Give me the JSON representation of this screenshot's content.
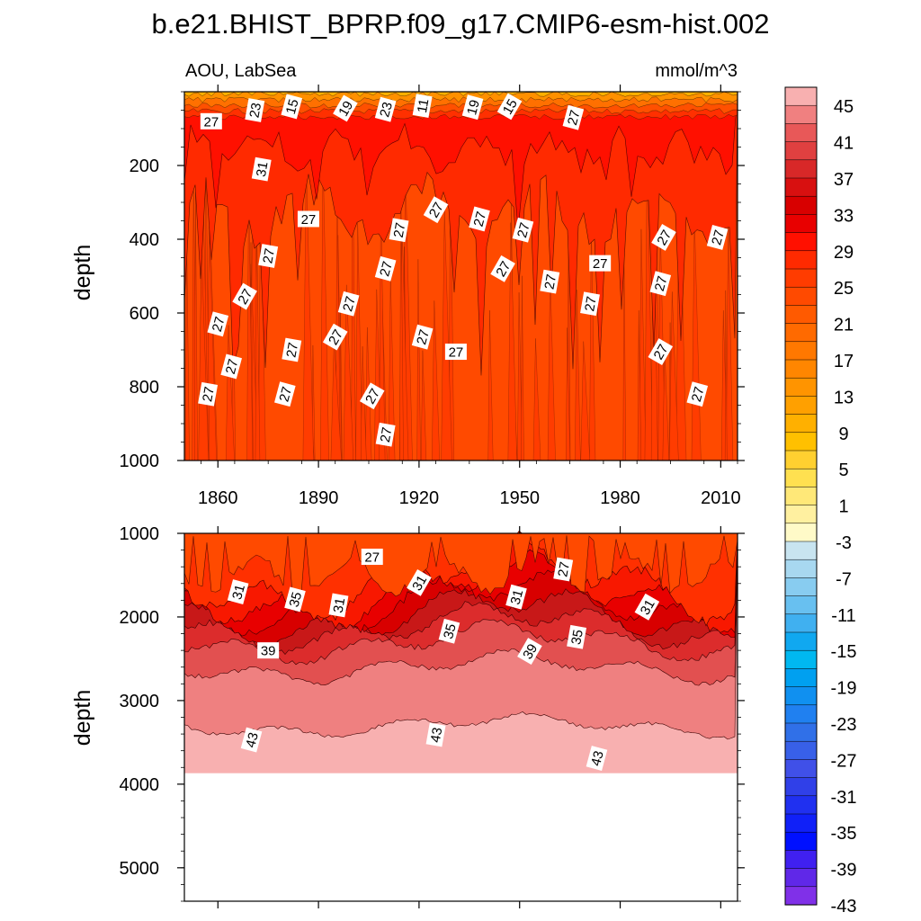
{
  "chart_data": [
    {
      "type": "contour",
      "panel": "upper",
      "title": "b.e21.BHIST_BPRP.f09_g17.CMIP6-esm-hist.002",
      "left_subtitle": "AOU, LabSea",
      "right_subtitle": "mmol/m^3",
      "xlabel": "",
      "ylabel": "depth",
      "xlim": [
        1850,
        2015
      ],
      "ylim": [
        0,
        1000
      ],
      "y_reversed": true,
      "x_ticks": [
        "1860",
        "1890",
        "1920",
        "1950",
        "1980",
        "2010"
      ],
      "x_tick_values": [
        1860,
        1890,
        1920,
        1950,
        1980,
        2010
      ],
      "y_ticks": [
        "200",
        "400",
        "600",
        "800",
        "1000"
      ],
      "y_tick_values": [
        200,
        400,
        600,
        800,
        1000
      ],
      "contour_labels": [
        {
          "text": "27",
          "x": 1858,
          "y": 80
        },
        {
          "text": "23",
          "x": 1871,
          "y": 50
        },
        {
          "text": "15",
          "x": 1882,
          "y": 40
        },
        {
          "text": "19",
          "x": 1898,
          "y": 45
        },
        {
          "text": "23",
          "x": 1910,
          "y": 48
        },
        {
          "text": "11",
          "x": 1921,
          "y": 38
        },
        {
          "text": "19",
          "x": 1936,
          "y": 42
        },
        {
          "text": "15",
          "x": 1947,
          "y": 40
        },
        {
          "text": "27",
          "x": 1966,
          "y": 70
        },
        {
          "text": "31",
          "x": 1873,
          "y": 210
        },
        {
          "text": "27",
          "x": 1887,
          "y": 345
        },
        {
          "text": "27",
          "x": 1925,
          "y": 320
        },
        {
          "text": "27",
          "x": 1938,
          "y": 345
        },
        {
          "text": "27",
          "x": 1914,
          "y": 375
        },
        {
          "text": "27",
          "x": 1951,
          "y": 375
        },
        {
          "text": "27",
          "x": 1993,
          "y": 395
        },
        {
          "text": "27",
          "x": 2009,
          "y": 395
        },
        {
          "text": "27",
          "x": 1875,
          "y": 445
        },
        {
          "text": "27",
          "x": 1910,
          "y": 480
        },
        {
          "text": "27",
          "x": 1945,
          "y": 480
        },
        {
          "text": "27",
          "x": 1974,
          "y": 465
        },
        {
          "text": "27",
          "x": 1959,
          "y": 515
        },
        {
          "text": "27",
          "x": 1992,
          "y": 520
        },
        {
          "text": "27",
          "x": 1868,
          "y": 555
        },
        {
          "text": "27",
          "x": 1899,
          "y": 575
        },
        {
          "text": "27",
          "x": 1971,
          "y": 575
        },
        {
          "text": "27",
          "x": 1860,
          "y": 630
        },
        {
          "text": "27",
          "x": 1895,
          "y": 665
        },
        {
          "text": "27",
          "x": 1921,
          "y": 665
        },
        {
          "text": "27",
          "x": 1882,
          "y": 700
        },
        {
          "text": "27",
          "x": 1931,
          "y": 705
        },
        {
          "text": "27",
          "x": 1992,
          "y": 705
        },
        {
          "text": "27",
          "x": 1864,
          "y": 745
        },
        {
          "text": "27",
          "x": 1857,
          "y": 820
        },
        {
          "text": "27",
          "x": 1880,
          "y": 820
        },
        {
          "text": "27",
          "x": 1906,
          "y": 825
        },
        {
          "text": "27",
          "x": 2003,
          "y": 820
        },
        {
          "text": "27",
          "x": 1910,
          "y": 930
        }
      ],
      "depth_profile": [
        {
          "depth": 0,
          "value": 1
        },
        {
          "depth": 20,
          "value": 11
        },
        {
          "depth": 40,
          "value": 19
        },
        {
          "depth": 70,
          "value": 27
        },
        {
          "depth": 150,
          "value": 29
        },
        {
          "depth": 250,
          "value": 28
        },
        {
          "depth": 400,
          "value": 27
        },
        {
          "depth": 1000,
          "value": 27
        }
      ]
    },
    {
      "type": "contour",
      "panel": "lower",
      "xlabel": "",
      "ylabel": "depth",
      "xlim": [
        1850,
        2015
      ],
      "ylim": [
        1000,
        5400
      ],
      "y_reversed": true,
      "y_ticks": [
        "1000",
        "2000",
        "3000",
        "4000",
        "5000"
      ],
      "y_tick_values": [
        1000,
        2000,
        3000,
        4000,
        5000
      ],
      "data_bottom_depth": 3870,
      "contour_labels": [
        {
          "text": "27",
          "x": 1906,
          "y": 1280
        },
        {
          "text": "27",
          "x": 1963,
          "y": 1430
        },
        {
          "text": "31",
          "x": 1866,
          "y": 1700
        },
        {
          "text": "31",
          "x": 1920,
          "y": 1590
        },
        {
          "text": "35",
          "x": 1883,
          "y": 1790
        },
        {
          "text": "31",
          "x": 1896,
          "y": 1860
        },
        {
          "text": "31",
          "x": 1949,
          "y": 1760
        },
        {
          "text": "31",
          "x": 1988,
          "y": 1880
        },
        {
          "text": "35",
          "x": 1929,
          "y": 2170
        },
        {
          "text": "35",
          "x": 1967,
          "y": 2240
        },
        {
          "text": "39",
          "x": 1875,
          "y": 2400
        },
        {
          "text": "39",
          "x": 1953,
          "y": 2410
        },
        {
          "text": "43",
          "x": 1870,
          "y": 3470
        },
        {
          "text": "43",
          "x": 1925,
          "y": 3410
        },
        {
          "text": "43",
          "x": 1973,
          "y": 3690
        }
      ],
      "band_boundaries": [
        {
          "value": 29,
          "mean_depth": 1550
        },
        {
          "value": 31,
          "mean_depth": 1700
        },
        {
          "value": 33,
          "mean_depth": 1840
        },
        {
          "value": 35,
          "mean_depth": 1980
        },
        {
          "value": 37,
          "mean_depth": 2120
        },
        {
          "value": 39,
          "mean_depth": 2300
        },
        {
          "value": 41,
          "mean_depth": 2600
        },
        {
          "value": 43,
          "mean_depth": 3300
        }
      ]
    }
  ],
  "colorbar": {
    "labels": [
      "45",
      "41",
      "37",
      "33",
      "29",
      "25",
      "21",
      "17",
      "13",
      "9",
      "5",
      "1",
      "-3",
      "-7",
      "-11",
      "-15",
      "-19",
      "-23",
      "-27",
      "-31",
      "-35",
      "-39",
      "-43"
    ],
    "colors": [
      "#f8b0b0",
      "#f08080",
      "#e85858",
      "#e04040",
      "#d82828",
      "#d81010",
      "#d80000",
      "#e80000",
      "#ff1000",
      "#ff2a00",
      "#ff3c00",
      "#ff4a00",
      "#ff5a00",
      "#ff6a00",
      "#ff7800",
      "#ff8600",
      "#ff9400",
      "#ffa000",
      "#ffb000",
      "#ffc000",
      "#ffd030",
      "#ffe050",
      "#ffe878",
      "#fff0a0",
      "#fffac8",
      "#c8e4f0",
      "#a8d8f0",
      "#88ccf0",
      "#68c0f0",
      "#40b0f0",
      "#10a8f0",
      "#00b8f0",
      "#00a0f0",
      "#1090f0",
      "#2080f0",
      "#3070e8",
      "#3860e8",
      "#4050e8",
      "#3040e8",
      "#2030f0",
      "#1020f8",
      "#0010ff",
      "#4020f0",
      "#6028e8",
      "#8030e8"
    ]
  },
  "colors": {
    "background": "#ffffff",
    "upper_base": "#ff4a00",
    "upper_deep_alt": "#ff3c00",
    "upper_mid": "#ff2a00",
    "upper_red": "#ff1000",
    "lower_top": "#ff4a00",
    "band_29": "#ff3000",
    "band_31": "#f81800",
    "band_33": "#e80000",
    "band_35": "#d80000",
    "band_37": "#c81818",
    "band_39": "#dc2c2c",
    "band_41": "#e25050",
    "band_43": "#ef8080",
    "band_45": "#f8b0b0"
  }
}
